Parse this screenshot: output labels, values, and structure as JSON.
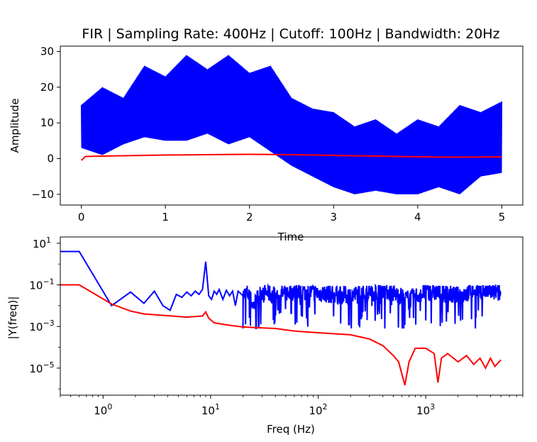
{
  "chart_data": [
    {
      "type": "line",
      "title": "FIR | Sampling Rate: 400Hz | Cutoff: 100Hz | Bandwidth: 20Hz",
      "xlabel": "Time",
      "ylabel": "Amplitude",
      "xlim": [
        -0.25,
        5.25
      ],
      "ylim": [
        -13,
        31.5
      ],
      "xticks": [
        0,
        1,
        2,
        3,
        4,
        5
      ],
      "yticks": [
        -10,
        0,
        10,
        20,
        30
      ],
      "grid": false,
      "series": [
        {
          "color": "#0000ff",
          "style": "filled-oscillation",
          "x": [
            0,
            0.25,
            0.5,
            0.75,
            1.0,
            1.25,
            1.5,
            1.75,
            2.0,
            2.25,
            2.5,
            2.75,
            3.0,
            3.25,
            3.5,
            3.75,
            4.0,
            4.25,
            4.5,
            4.75,
            5.0
          ],
          "upper": [
            15,
            20,
            17,
            26,
            23,
            29,
            25,
            29,
            24,
            26,
            17,
            14,
            13,
            9,
            11,
            7,
            11,
            9,
            15,
            13,
            16
          ],
          "lower": [
            3,
            1,
            4,
            6,
            5,
            5,
            7,
            4,
            6,
            2,
            -2,
            -5,
            -8,
            -10,
            -9,
            -10,
            -10,
            -8,
            -10,
            -5,
            -4
          ]
        },
        {
          "color": "#ff0000",
          "style": "line",
          "x": [
            0,
            0.05,
            0.5,
            1.0,
            1.5,
            2.0,
            2.5,
            3.0,
            3.5,
            4.0,
            4.5,
            5.0
          ],
          "y": [
            -0.5,
            0.6,
            0.8,
            1.0,
            1.1,
            1.2,
            1.1,
            0.9,
            0.7,
            0.5,
            0.4,
            0.5
          ]
        }
      ]
    },
    {
      "type": "line",
      "title": "",
      "xlabel": "Freq (Hz)",
      "ylabel": "|Y(freq)|",
      "xscale": "log",
      "yscale": "log",
      "xlim": [
        0.4,
        8000
      ],
      "ylim": [
        5e-07,
        20
      ],
      "xticks": [
        1,
        10,
        100,
        1000
      ],
      "xtick_labels": [
        "10^0",
        "10^1",
        "10^2",
        "10^3"
      ],
      "yticks": [
        1e-05,
        0.001,
        0.1,
        10
      ],
      "ytick_labels": [
        "10^-5",
        "10^-3",
        "10^-1",
        "10^1"
      ],
      "grid": false,
      "series": [
        {
          "color": "#0000ff",
          "x": [
            0.4,
            0.6,
            1.2,
            1.8,
            2.4,
            3.0,
            3.6,
            4.2,
            4.8,
            5.4,
            6.0,
            6.6,
            7.2,
            7.8,
            8.4,
            9.0,
            9.6,
            10.2,
            10.8,
            11.4,
            12,
            13,
            14,
            15,
            16,
            17,
            18,
            20,
            22,
            25,
            30,
            40,
            60,
            100,
            200,
            400,
            700,
            1000,
            2000,
            3000,
            5000
          ],
          "y": [
            4,
            4,
            0.01,
            0.045,
            0.013,
            0.05,
            0.01,
            0.006,
            0.035,
            0.025,
            0.045,
            0.03,
            0.05,
            0.035,
            0.06,
            1.3,
            0.03,
            0.02,
            0.05,
            0.035,
            0.06,
            0.02,
            0.055,
            0.03,
            0.05,
            0.01,
            0.05,
            0.03,
            0.04,
            0.01,
            0.05,
            0.03,
            0.05,
            0.04,
            0.03,
            0.06,
            0.02,
            0.05,
            0.03,
            0.06,
            0.04
          ]
        },
        {
          "color": "#ff0000",
          "x": [
            0.4,
            0.6,
            1.2,
            1.8,
            2.4,
            4,
            6,
            8.4,
            9,
            9.6,
            10.8,
            14,
            20,
            40,
            60,
            100,
            200,
            300,
            400,
            500,
            560,
            640,
            700,
            800,
            1000,
            1200,
            1300,
            1400,
            1600,
            2000,
            2400,
            2800,
            3200,
            3600,
            4000,
            4400,
            5000
          ],
          "y": [
            0.1,
            0.1,
            0.012,
            0.0055,
            0.004,
            0.0033,
            0.0028,
            0.0032,
            0.005,
            0.0025,
            0.0015,
            0.0012,
            0.00095,
            0.0008,
            0.0006,
            0.0005,
            0.0004,
            0.00025,
            0.00012,
            4e-05,
            2e-05,
            1.5e-06,
            2e-05,
            9e-05,
            9e-05,
            5e-05,
            2e-06,
            3e-05,
            5e-05,
            2e-05,
            4e-05,
            1.5e-05,
            3e-05,
            1e-05,
            3e-05,
            1.2e-05,
            2.5e-05
          ]
        }
      ]
    }
  ]
}
